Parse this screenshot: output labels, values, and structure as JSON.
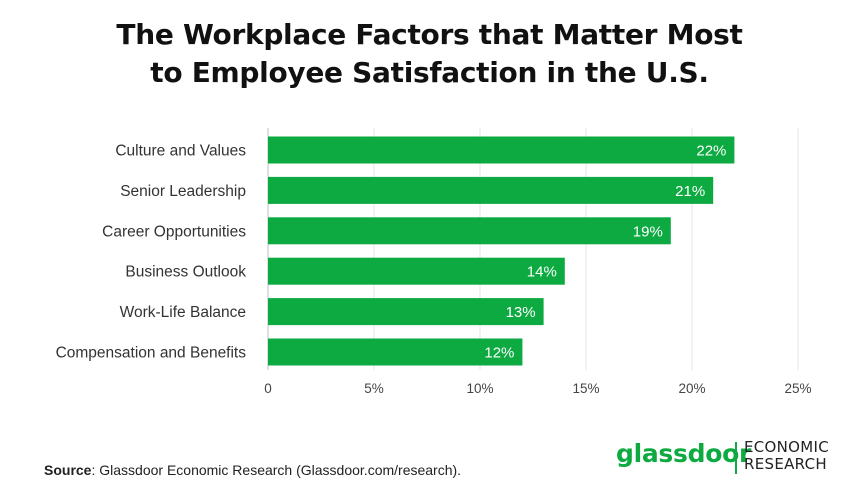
{
  "title": {
    "line1": "The Workplace Factors that Matter Most",
    "line2": "to Employee Satisfaction in the U.S."
  },
  "chart_data": {
    "type": "bar",
    "orientation": "horizontal",
    "title": "The Workplace Factors that Matter Most to Employee Satisfaction in the U.S.",
    "categories": [
      "Culture and Values",
      "Senior Leadership",
      "Career Opportunities",
      "Business Outlook",
      "Work-Life Balance",
      "Compensation and Benefits"
    ],
    "values": [
      22,
      21,
      19,
      14,
      13,
      12
    ],
    "value_labels": [
      "22%",
      "21%",
      "19%",
      "14%",
      "13%",
      "12%"
    ],
    "xlim": [
      0,
      25
    ],
    "x_ticks": [
      0,
      5,
      10,
      15,
      20,
      25
    ],
    "x_tick_labels": [
      "0",
      "5%",
      "10%",
      "15%",
      "20%",
      "25%"
    ],
    "grid": "vertical",
    "bar_color": "#0caa41",
    "legend": "none"
  },
  "footer": {
    "source_label": "Source",
    "source_text": ": Glassdoor Economic Research (Glassdoor.com/research)."
  },
  "logo": {
    "wordmark": "glassdoor",
    "sub_line1": "ECONOMIC",
    "sub_line2": "RESEARCH",
    "color": "#0caa41"
  }
}
